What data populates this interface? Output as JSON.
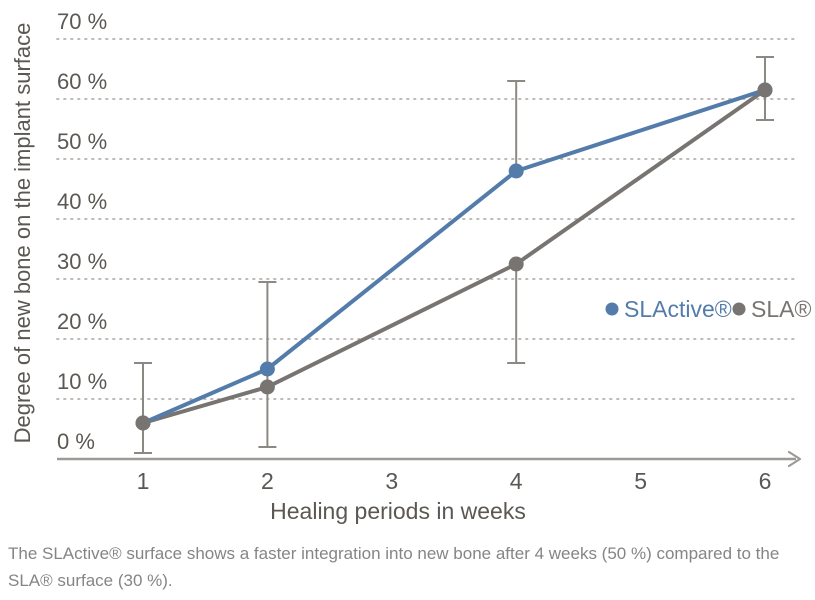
{
  "chart_data": {
    "type": "line",
    "title": "",
    "xlabel": "Healing periods in weeks",
    "ylabel": "Degree of new bone on the implant surface",
    "x": [
      1,
      2,
      4,
      6
    ],
    "x_ticks": [
      1,
      2,
      3,
      4,
      5,
      6
    ],
    "y_ticks": [
      0,
      10,
      20,
      30,
      40,
      50,
      60,
      70
    ],
    "y_tick_labels": [
      "0 %",
      "10 %",
      "20 %",
      "30 %",
      "40 %",
      "50 %",
      "60 %",
      "70 %"
    ],
    "xlim": [
      0.3,
      6.3
    ],
    "ylim": [
      0,
      70
    ],
    "grid": "horizontal dotted",
    "legend_position": "middle-right",
    "series": [
      {
        "name": "SLActive®",
        "color": "#537cab",
        "values": [
          6,
          15,
          48,
          61.5
        ]
      },
      {
        "name": "SLA®",
        "color": "#787471",
        "values": [
          6,
          12,
          32.5,
          61.5
        ]
      }
    ],
    "error_bars": [
      {
        "week": 1,
        "from": 1,
        "to": 16,
        "caps": "both"
      },
      {
        "week": 2,
        "from": 2,
        "to": 29.5,
        "caps": "both"
      },
      {
        "week": 4,
        "from": 48,
        "to": 63,
        "caps": "top"
      },
      {
        "week": 4,
        "from": 16,
        "to": 32.5,
        "caps": "bottom"
      },
      {
        "week": 6,
        "from": 56.5,
        "to": 67,
        "caps": "both"
      }
    ],
    "error_bar_color": "#8c8985"
  },
  "caption": {
    "line1": "The SLActive® surface shows a faster integration into new bone after 4 weeks (50 %) compared to the",
    "line2": "SLA® surface (30 %)."
  },
  "colors": {
    "axis_text": "#5b5753",
    "caption_text": "#858585",
    "gridline": "#b4b1ae",
    "axis_line": "#9c9996",
    "background": "#ffffff"
  }
}
